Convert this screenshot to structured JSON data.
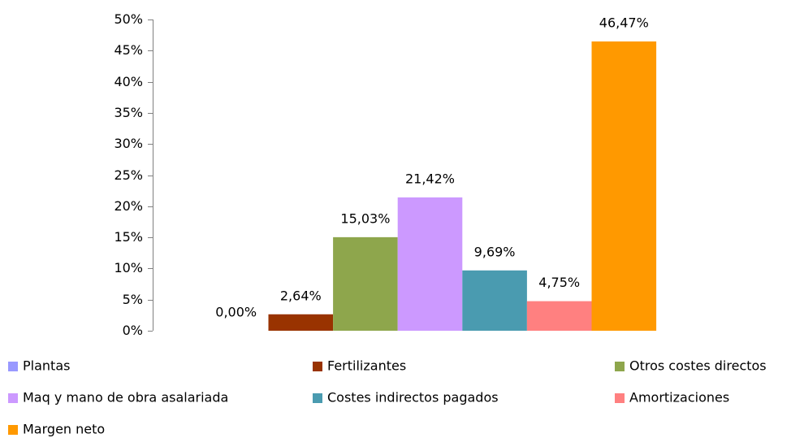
{
  "chart_data": {
    "type": "bar",
    "categories": [
      null
    ],
    "series": [
      {
        "name": "Plantas",
        "color": "#9999ff",
        "values": [
          0
        ],
        "value_labels": [
          "0,00%"
        ]
      },
      {
        "name": "Fertilizantes",
        "color": "#993300",
        "values": [
          2.64
        ],
        "value_labels": [
          "2,64%"
        ]
      },
      {
        "name": "Otros costes directos",
        "color": "#8ea64c",
        "values": [
          15.03
        ],
        "value_labels": [
          "15,03%"
        ]
      },
      {
        "name": "Maq y mano de obra asalariada",
        "color": "#cc99ff",
        "values": [
          21.42
        ],
        "value_labels": [
          "21,42%"
        ]
      },
      {
        "name": "Costes indirectos pagados",
        "color": "#4a9bb0",
        "values": [
          9.69
        ],
        "value_labels": [
          "9,69%"
        ]
      },
      {
        "name": "Amortizaciones",
        "color": "#ff8080",
        "values": [
          4.75
        ],
        "value_labels": [
          "4,75%"
        ]
      },
      {
        "name": "Margen neto",
        "color": "#ff9900",
        "values": [
          46.47
        ],
        "value_labels": [
          "46,47%"
        ]
      }
    ],
    "ylim": [
      0,
      50
    ],
    "yticks": [
      {
        "value": 0,
        "label": "0%"
      },
      {
        "value": 5,
        "label": "5%"
      },
      {
        "value": 10,
        "label": "10%"
      },
      {
        "value": 15,
        "label": "15%"
      },
      {
        "value": 20,
        "label": "20%"
      },
      {
        "value": 25,
        "label": "25%"
      },
      {
        "value": 30,
        "label": "30%"
      },
      {
        "value": 35,
        "label": "35%"
      },
      {
        "value": 40,
        "label": "40%"
      },
      {
        "value": 45,
        "label": "45%"
      },
      {
        "value": 50,
        "label": "50%"
      }
    ],
    "grid": false,
    "legend": "bottom"
  }
}
